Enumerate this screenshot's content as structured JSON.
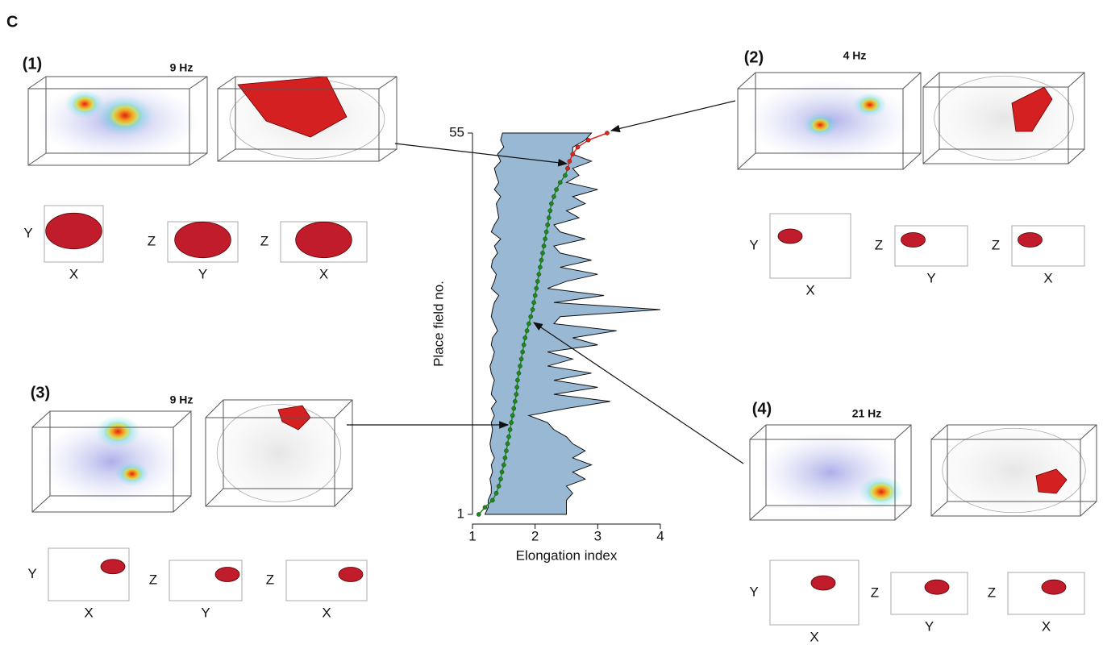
{
  "figure_label": "C",
  "panels": [
    {
      "label": "(1)",
      "freq": "9 Hz",
      "views": [
        {
          "v": "Y",
          "h": "X"
        },
        {
          "v": "Z",
          "h": "Y"
        },
        {
          "v": "Z",
          "h": "X"
        }
      ]
    },
    {
      "label": "(2)",
      "freq": "4 Hz",
      "views": [
        {
          "v": "Y",
          "h": "X"
        },
        {
          "v": "Z",
          "h": "Y"
        },
        {
          "v": "Z",
          "h": "X"
        }
      ]
    },
    {
      "label": "(3)",
      "freq": "9 Hz",
      "views": [
        {
          "v": "Y",
          "h": "X"
        },
        {
          "v": "Z",
          "h": "Y"
        },
        {
          "v": "Z",
          "h": "X"
        }
      ]
    },
    {
      "label": "(4)",
      "freq": "21 Hz",
      "views": [
        {
          "v": "Y",
          "h": "X"
        },
        {
          "v": "Z",
          "h": "Y"
        },
        {
          "v": "Z",
          "h": "X"
        }
      ]
    }
  ],
  "chart_data": {
    "type": "line",
    "xlabel": "Elongation index",
    "ylabel": "Place field no.",
    "xlim": [
      1,
      4
    ],
    "xticks": [
      1,
      2,
      3,
      4
    ],
    "ylim": [
      1,
      55
    ],
    "yticks": [
      1,
      55
    ],
    "y": [
      1,
      2,
      3,
      4,
      5,
      6,
      7,
      8,
      9,
      10,
      11,
      12,
      13,
      14,
      15,
      16,
      17,
      18,
      19,
      20,
      21,
      22,
      23,
      24,
      25,
      26,
      27,
      28,
      29,
      30,
      31,
      32,
      33,
      34,
      35,
      36,
      37,
      38,
      39,
      40,
      41,
      42,
      43,
      44,
      45,
      46,
      47,
      48,
      49,
      50,
      51,
      52,
      53,
      54,
      55
    ],
    "area": {
      "color": "#98b8d4",
      "lower": [
        1.2,
        1.25,
        1.25,
        1.3,
        1.3,
        1.28,
        1.32,
        1.3,
        1.35,
        1.3,
        1.28,
        1.3,
        1.32,
        1.3,
        1.35,
        1.3,
        1.38,
        1.3,
        1.32,
        1.35,
        1.3,
        1.28,
        1.32,
        1.35,
        1.3,
        1.32,
        1.4,
        1.35,
        1.3,
        1.32,
        1.35,
        1.42,
        1.3,
        1.35,
        1.38,
        1.3,
        1.32,
        1.4,
        1.35,
        1.45,
        1.3,
        1.35,
        1.42,
        1.4,
        1.38,
        1.45,
        1.35,
        1.42,
        1.38,
        1.35,
        1.45,
        1.4,
        1.5,
        1.45,
        1.48
      ],
      "upper": [
        2.5,
        2.5,
        2.5,
        2.6,
        2.5,
        2.8,
        2.6,
        2.9,
        2.6,
        2.8,
        2.6,
        2.5,
        2.3,
        2.2,
        1.9,
        2.5,
        3.2,
        2.3,
        3.0,
        2.3,
        2.9,
        2.2,
        2.6,
        2.2,
        3.0,
        2.6,
        3.3,
        2.3,
        2.4,
        4.0,
        2.3,
        3.1,
        2.2,
        2.5,
        3.0,
        2.4,
        2.9,
        2.4,
        2.3,
        2.8,
        2.4,
        2.3,
        2.7,
        2.5,
        2.8,
        2.6,
        3.0,
        2.5,
        2.7,
        2.6,
        2.9,
        2.6,
        2.6,
        2.8,
        2.9
      ]
    },
    "series": [
      {
        "color": "#1a8a1a",
        "values": [
          1.1,
          1.2,
          1.32,
          1.38,
          1.42,
          1.45,
          1.47,
          1.5,
          1.52,
          1.54,
          1.56,
          1.58,
          1.6,
          1.62,
          1.64,
          1.66,
          1.68,
          1.7,
          1.71,
          1.72,
          1.74,
          1.76,
          1.78,
          1.8,
          1.82,
          1.84,
          1.87,
          1.9,
          1.93,
          1.96,
          1.98,
          2.0,
          2.02,
          2.04,
          2.06,
          2.08,
          2.1,
          2.12,
          2.14,
          2.16,
          2.18,
          2.2,
          2.22,
          2.24,
          2.26,
          2.3,
          2.34,
          2.4,
          2.48,
          2.52,
          null,
          null,
          null,
          null,
          null
        ]
      },
      {
        "color": "#e0231b",
        "values": [
          null,
          null,
          null,
          null,
          null,
          null,
          null,
          null,
          null,
          null,
          null,
          null,
          null,
          null,
          null,
          null,
          null,
          null,
          null,
          null,
          null,
          null,
          null,
          null,
          null,
          null,
          null,
          null,
          null,
          null,
          null,
          null,
          null,
          null,
          null,
          null,
          null,
          null,
          null,
          null,
          null,
          null,
          null,
          null,
          null,
          null,
          null,
          null,
          null,
          2.52,
          2.55,
          2.6,
          2.68,
          2.85,
          3.15
        ]
      }
    ]
  }
}
